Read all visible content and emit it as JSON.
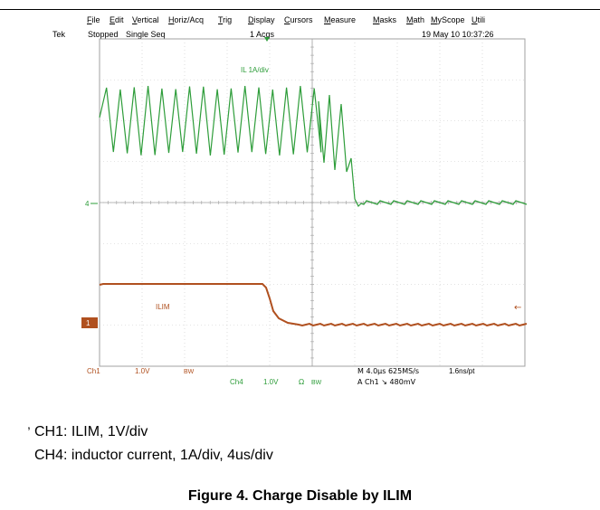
{
  "menu": {
    "items": [
      "File",
      "Edit",
      "Vertical",
      "Horiz/Acq",
      "Trig",
      "Display",
      "Cursors",
      "Measure",
      "Masks",
      "Math",
      "MyScope",
      "Utili"
    ]
  },
  "status": {
    "brand": "Tek",
    "state": "Stopped",
    "mode": "Single Seq",
    "acqs": "1 Acqs",
    "datetime": "19 May 10 10:37:26"
  },
  "waveforms": {
    "ch4_label": "IL 1A/div",
    "ch1_label": "ILIM",
    "ch4_marker": "4",
    "ch1_marker": "1",
    "trigger_arrow": "←"
  },
  "readout": {
    "ch1_name": "Ch1",
    "ch1_scale": "1.0V",
    "ch1_bw": "BW",
    "ch4_name": "Ch4",
    "ch4_scale": "1.0V",
    "ch4_ohm": "Ω",
    "ch4_bw": "BW",
    "timebase": "M 4.0μs 625MS/s",
    "resolution": "1.6ns/pt",
    "trigger": "A  Ch1  ↘  480mV"
  },
  "colors": {
    "ch4": "#2e9d3a",
    "ch1": "#b0501f",
    "grid": "#c8c8c8",
    "frame": "#a0a0a0"
  },
  "caption": {
    "comma": ",",
    "line1": "CH1: ILIM, 1V/div",
    "line2": "CH4: inductor current, 1A/div, 4us/div",
    "figure": "Figure 4. Charge Disable by ILIM"
  }
}
